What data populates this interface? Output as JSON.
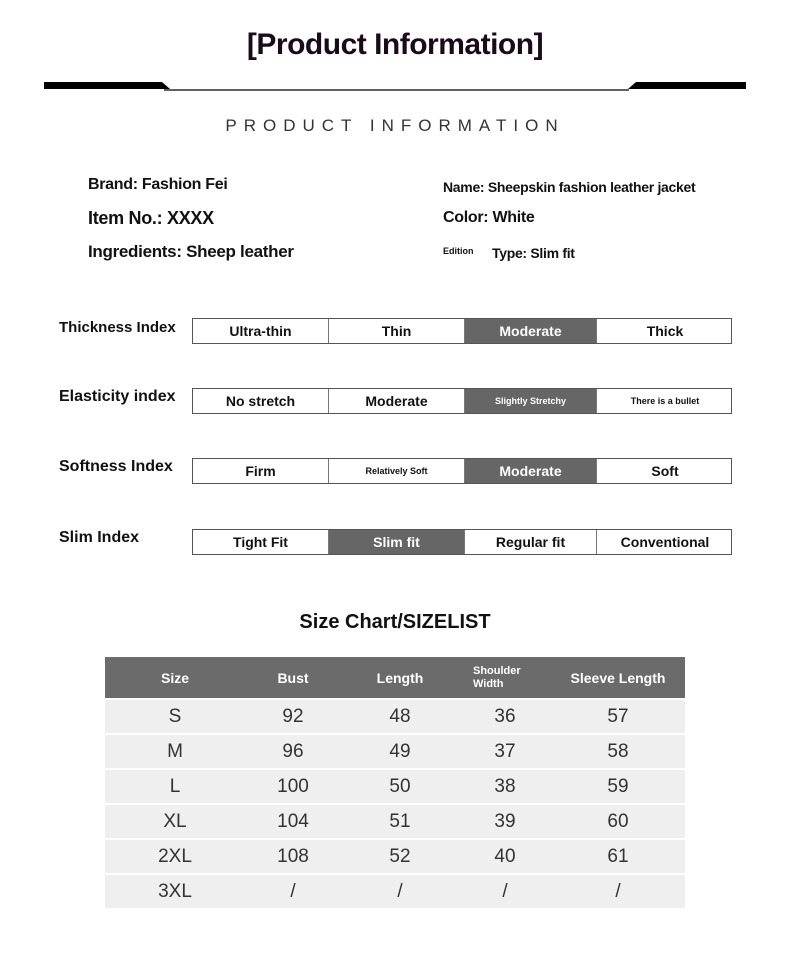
{
  "header": {
    "title": "[Product Information]",
    "subtitle": "PRODUCT INFORMATION"
  },
  "info": {
    "brand": "Brand: Fashion Fei",
    "item_no": "Item No.: XXXX",
    "ingredients": "Ingredients: Sheep leather",
    "name": "Name: Sheepskin fashion leather jacket",
    "color": "Color: White",
    "edition": "Edition",
    "type": "Type: Slim fit"
  },
  "indices": [
    {
      "label": "Thickness Index",
      "options": [
        "Ultra-thin",
        "Thin",
        "Moderate",
        "Thick"
      ],
      "selected": 2
    },
    {
      "label": "Elasticity index",
      "options": [
        "No stretch",
        "Moderate",
        "Slightly Stretchy",
        "There is a bullet"
      ],
      "selected": 2
    },
    {
      "label": "Softness Index",
      "options": [
        "Firm",
        "Relatively Soft",
        "Moderate",
        "Soft"
      ],
      "selected": 2
    },
    {
      "label": "Slim Index",
      "options": [
        "Tight Fit",
        "Slim fit",
        "Regular fit",
        "Conventional"
      ],
      "selected": 1
    }
  ],
  "accent": "#666666",
  "size_chart": {
    "title": "Size Chart/SIZELIST",
    "headers": [
      "Size",
      "Bust",
      "Length",
      "Shoulder Width",
      "Sleeve Length"
    ],
    "rows": [
      [
        "S",
        "92",
        "48",
        "36",
        "57"
      ],
      [
        "M",
        "96",
        "49",
        "37",
        "58"
      ],
      [
        "L",
        "100",
        "50",
        "38",
        "59"
      ],
      [
        "XL",
        "104",
        "51",
        "39",
        "60"
      ],
      [
        "2XL",
        "108",
        "52",
        "40",
        "61"
      ],
      [
        "3XL",
        "/",
        "/",
        "/",
        "/"
      ]
    ]
  }
}
